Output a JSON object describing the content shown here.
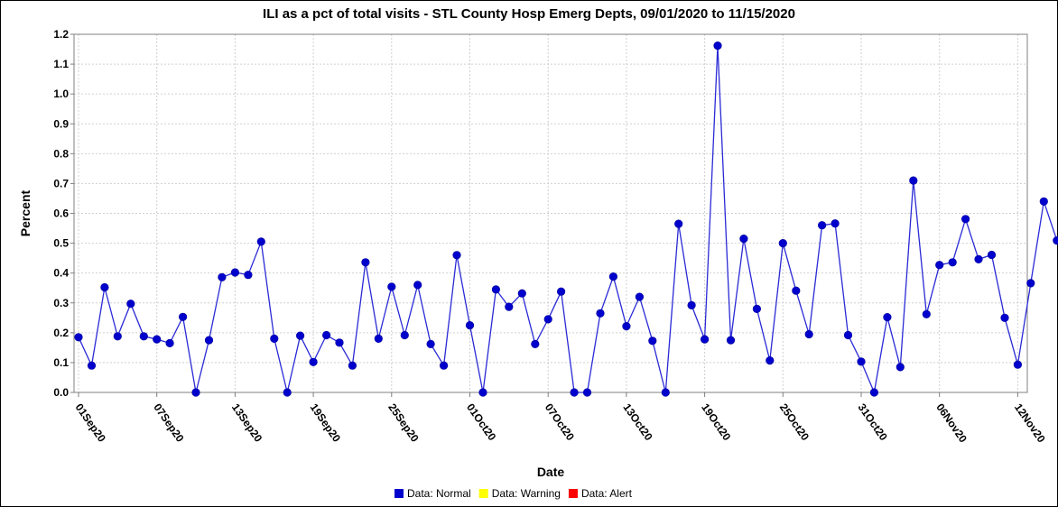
{
  "chart_data": {
    "type": "line",
    "title": "ILI as a pct of total visits - STL County Hosp Emerg Depts, 09/01/2020 to 11/15/2020",
    "xlabel": "Date",
    "ylabel": "Percent",
    "ylim": [
      0,
      1.2
    ],
    "y_ticks": [
      "0.0",
      "0.1",
      "0.2",
      "0.3",
      "0.4",
      "0.5",
      "0.6",
      "0.7",
      "0.8",
      "0.9",
      "1.0",
      "1.1",
      "1.2"
    ],
    "x_ticks": [
      "01Sep20",
      "07Sep20",
      "13Sep20",
      "19Sep20",
      "25Sep20",
      "01Oct20",
      "07Oct20",
      "13Oct20",
      "19Oct20",
      "25Oct20",
      "31Oct20",
      "06Nov20",
      "12Nov20"
    ],
    "grid": true,
    "legend_position": "bottom",
    "series_color": "#0000cc",
    "line_color": "#2a2ad6",
    "series": [
      {
        "name": "Data: Normal",
        "x": [
          "2020-09-01",
          "2020-09-02",
          "2020-09-03",
          "2020-09-04",
          "2020-09-05",
          "2020-09-06",
          "2020-09-07",
          "2020-09-08",
          "2020-09-09",
          "2020-09-10",
          "2020-09-11",
          "2020-09-12",
          "2020-09-13",
          "2020-09-14",
          "2020-09-15",
          "2020-09-16",
          "2020-09-17",
          "2020-09-18",
          "2020-09-19",
          "2020-09-20",
          "2020-09-21",
          "2020-09-22",
          "2020-09-23",
          "2020-09-24",
          "2020-09-25",
          "2020-09-26",
          "2020-09-27",
          "2020-09-28",
          "2020-09-29",
          "2020-09-30",
          "2020-10-01",
          "2020-10-02",
          "2020-10-03",
          "2020-10-04",
          "2020-10-05",
          "2020-10-06",
          "2020-10-07",
          "2020-10-08",
          "2020-10-09",
          "2020-10-10",
          "2020-10-11",
          "2020-10-12",
          "2020-10-13",
          "2020-10-14",
          "2020-10-15",
          "2020-10-16",
          "2020-10-17",
          "2020-10-18",
          "2020-10-19",
          "2020-10-20",
          "2020-10-21",
          "2020-10-22",
          "2020-10-23",
          "2020-10-24",
          "2020-10-25",
          "2020-10-26",
          "2020-10-27",
          "2020-10-28",
          "2020-10-29",
          "2020-10-30",
          "2020-10-31",
          "2020-11-01",
          "2020-11-02",
          "2020-11-03",
          "2020-11-04",
          "2020-11-05",
          "2020-11-06",
          "2020-11-07",
          "2020-11-08",
          "2020-11-09",
          "2020-11-10",
          "2020-11-11",
          "2020-11-12",
          "2020-11-13",
          "2020-11-14",
          "2020-11-15"
        ],
        "values": [
          0.185,
          0.09,
          0.352,
          0.188,
          0.297,
          0.188,
          0.178,
          0.165,
          0.253,
          0.0,
          0.175,
          0.386,
          0.402,
          0.394,
          0.505,
          0.18,
          0.0,
          0.19,
          0.102,
          0.192,
          0.167,
          0.09,
          0.436,
          0.18,
          0.354,
          0.192,
          0.36,
          0.162,
          0.09,
          0.46,
          0.225,
          0.0,
          0.345,
          0.287,
          0.332,
          0.162,
          0.245,
          0.338,
          0.0,
          0.0,
          0.265,
          0.388,
          0.222,
          0.32,
          0.173,
          0.0,
          0.565,
          0.292,
          0.178,
          1.162,
          0.175,
          0.515,
          0.28,
          0.107,
          0.5,
          0.341,
          0.195,
          0.56,
          0.566,
          0.192,
          0.103,
          0.0,
          0.252,
          0.085,
          0.71,
          0.262,
          0.427,
          0.436,
          0.581,
          0.446,
          0.461,
          0.25,
          0.093,
          0.366,
          0.64,
          0.509
        ]
      }
    ],
    "legend": [
      {
        "label": "Data: Normal",
        "color": "#0000cc"
      },
      {
        "label": "Data: Warning",
        "color": "#ffff00"
      },
      {
        "label": "Data: Alert",
        "color": "#ff0000"
      }
    ]
  }
}
